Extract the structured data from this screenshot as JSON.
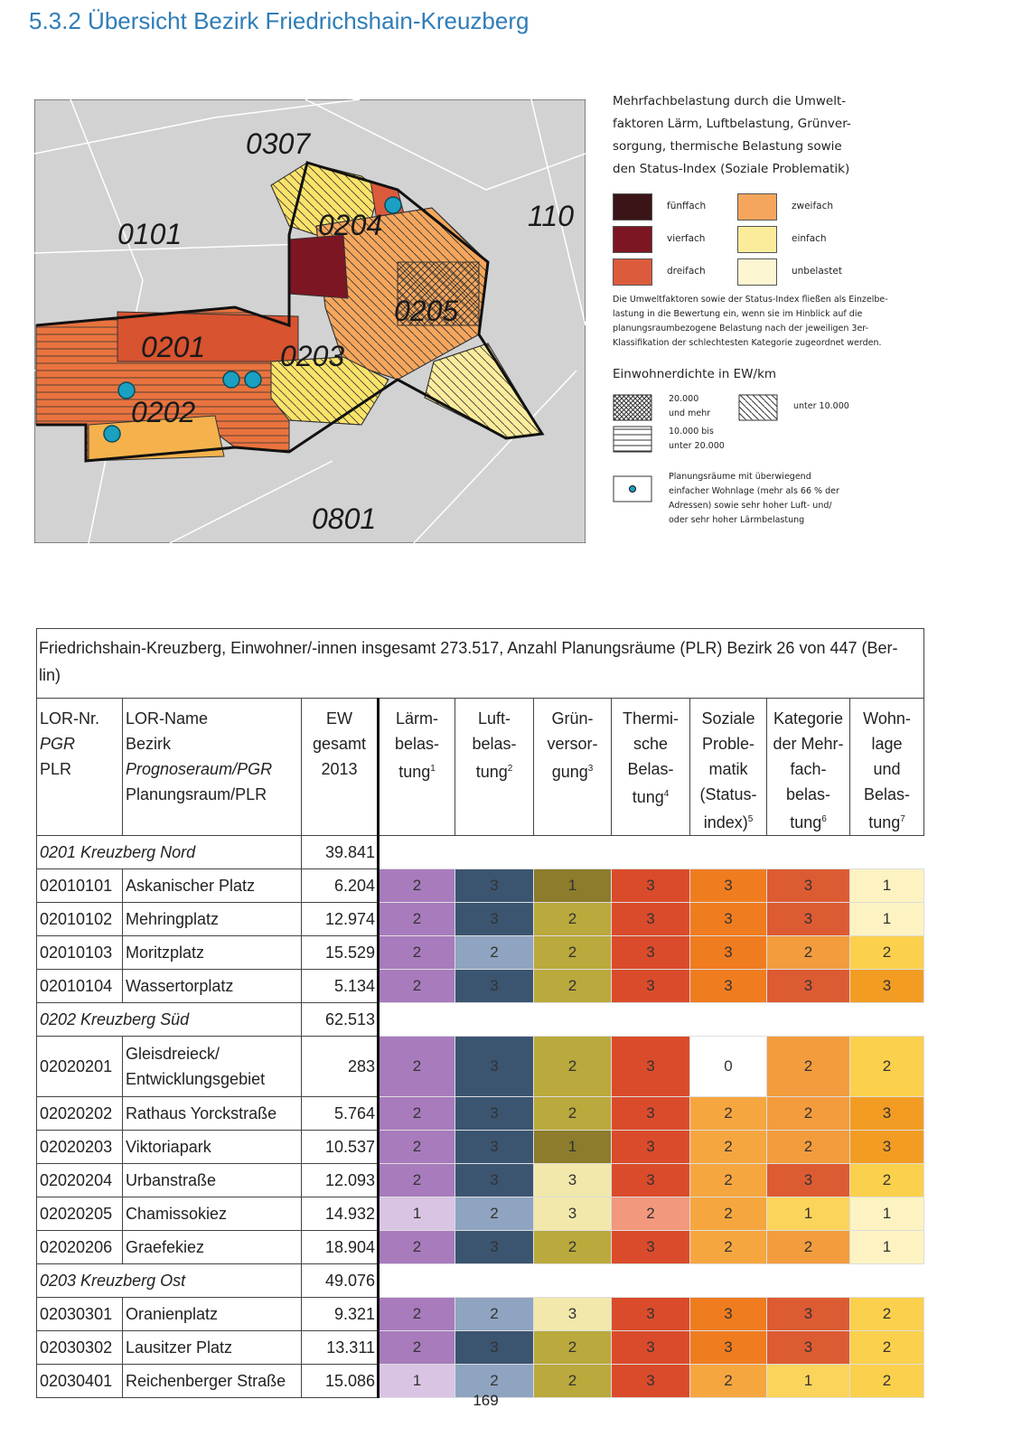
{
  "header": {
    "title": "5.3.2 Übersicht Bezirk Friedrichshain-Kreuzberg"
  },
  "map": {
    "labels": [
      "0307",
      "0101",
      "0204",
      "110",
      "0205",
      "0201",
      "0203",
      "0202",
      "0801"
    ]
  },
  "legend": {
    "heading": "Mehrfachbelastung durch die Umwelt-\nfaktoren Lärm, Luftbelastung, Grünver-\nsorgung, thermische Belastung sowie\nden Status-Index (Soziale Problematik)",
    "classes": [
      {
        "label": "fünffach",
        "color": "#3a1416"
      },
      {
        "label": "vierfach",
        "color": "#7c1622"
      },
      {
        "label": "dreifach",
        "color": "#dc5a3c"
      },
      {
        "label": "zweifach",
        "color": "#f5a65c"
      },
      {
        "label": "einfach",
        "color": "#fbec9c"
      },
      {
        "label": "unbelastet",
        "color": "#fdf6d2"
      }
    ],
    "note": "Die Umweltfaktoren sowie der Status-Index fließen als Einzelbe-\nlastung in die Bewertung ein, wenn sie im Hinblick auf die\nplanungsraumbezogene Belastung nach der jeweiligen 3er-\nKlassifikation der schlechtesten Kategorie zugeordnet werden.",
    "density_heading": "Einwohnerdichte in EW/km",
    "density": [
      "20.000\nund mehr",
      "10.000 bis\nunter 20.000",
      "unter 10.000"
    ],
    "marker_note": "Planungsräume mit überwiegend\neinfacher Wohnlage (mehr als 66 % der\nAdressen) sowie sehr hoher Luft- und/\noder sehr hoher Lärmbelastung"
  },
  "table": {
    "caption": "Friedrichshain-Kreuzberg, Einwohner/-innen insgesamt 273.517, Anzahl Planungsräume (PLR) Bezirk 26 von 447 (Ber-\nlin)",
    "columns": [
      {
        "lines": [
          "LOR-Nr.",
          "PGR",
          "PLR"
        ]
      },
      {
        "lines": [
          "LOR-Name",
          "Bezirk",
          "Prognoseraum/PGR",
          "Planungsraum/PLR"
        ]
      },
      {
        "lines": [
          "EW",
          "gesamt",
          "2013"
        ]
      },
      {
        "lines": [
          "Lärm-",
          "belas-",
          "tung"
        ],
        "note": "1"
      },
      {
        "lines": [
          "Luft-",
          "belas-",
          "tung"
        ],
        "note": "2"
      },
      {
        "lines": [
          "Grün-",
          "versor-",
          "gung"
        ],
        "note": "3"
      },
      {
        "lines": [
          "Thermi-",
          "sche",
          "Belas-",
          "tung"
        ],
        "note": "4"
      },
      {
        "lines": [
          "Soziale",
          "Proble-",
          "matik",
          "(Status-",
          "index)"
        ],
        "note": "5"
      },
      {
        "lines": [
          "Kategorie",
          "der Mehr-",
          "fach-",
          "belas-",
          "tung"
        ],
        "note": "6"
      },
      {
        "lines": [
          "Wohn-",
          "lage",
          "und",
          "Belas-",
          "tung"
        ],
        "note": "7"
      }
    ],
    "rows": [
      {
        "pgr": "0201 Kreuzberg Nord",
        "ew": "39.841"
      },
      {
        "id": "02010101",
        "name": "Askanischer Platz",
        "ew": "6.204",
        "values": [
          2,
          3,
          1,
          3,
          3,
          3,
          1
        ]
      },
      {
        "id": "02010102",
        "name": "Mehringplatz",
        "ew": "12.974",
        "values": [
          2,
          3,
          2,
          3,
          3,
          3,
          1
        ]
      },
      {
        "id": "02010103",
        "name": "Moritzplatz",
        "ew": "15.529",
        "values": [
          2,
          2,
          2,
          3,
          3,
          2,
          2
        ]
      },
      {
        "id": "02010104",
        "name": "Wassertorplatz",
        "ew": "5.134",
        "values": [
          2,
          3,
          2,
          3,
          3,
          3,
          3
        ]
      },
      {
        "pgr": "0202 Kreuzberg Süd",
        "ew": "62.513"
      },
      {
        "id": "02020201",
        "name": "Gleisdreieck/\nEntwicklungsgebiet",
        "ew": "283",
        "values": [
          2,
          3,
          2,
          3,
          0,
          2,
          2
        ]
      },
      {
        "id": "02020202",
        "name": "Rathaus Yorckstraße",
        "ew": "5.764",
        "values": [
          2,
          3,
          2,
          3,
          2,
          2,
          3
        ]
      },
      {
        "id": "02020203",
        "name": "Viktoriapark",
        "ew": "10.537",
        "values": [
          2,
          3,
          1,
          3,
          2,
          2,
          3
        ]
      },
      {
        "id": "02020204",
        "name": "Urbanstraße",
        "ew": "12.093",
        "values": [
          2,
          3,
          3,
          3,
          2,
          3,
          2
        ]
      },
      {
        "id": "02020205",
        "name": "Chamissokiez",
        "ew": "14.932",
        "values": [
          1,
          2,
          3,
          2,
          2,
          1,
          1
        ]
      },
      {
        "id": "02020206",
        "name": "Graefekiez",
        "ew": "18.904",
        "values": [
          2,
          3,
          2,
          3,
          2,
          2,
          1
        ]
      },
      {
        "pgr": "0203 Kreuzberg Ost",
        "ew": "49.076"
      },
      {
        "id": "02030301",
        "name": "Oranienplatz",
        "ew": "9.321",
        "values": [
          2,
          2,
          3,
          3,
          3,
          3,
          2
        ]
      },
      {
        "id": "02030302",
        "name": "Lausitzer Platz",
        "ew": "13.311",
        "values": [
          2,
          3,
          2,
          3,
          3,
          3,
          2
        ]
      },
      {
        "id": "02030401",
        "name": "Reichenberger Straße",
        "ew": "15.086",
        "values": [
          1,
          2,
          2,
          3,
          2,
          1,
          2
        ]
      }
    ]
  },
  "footer": {
    "page": "169"
  }
}
